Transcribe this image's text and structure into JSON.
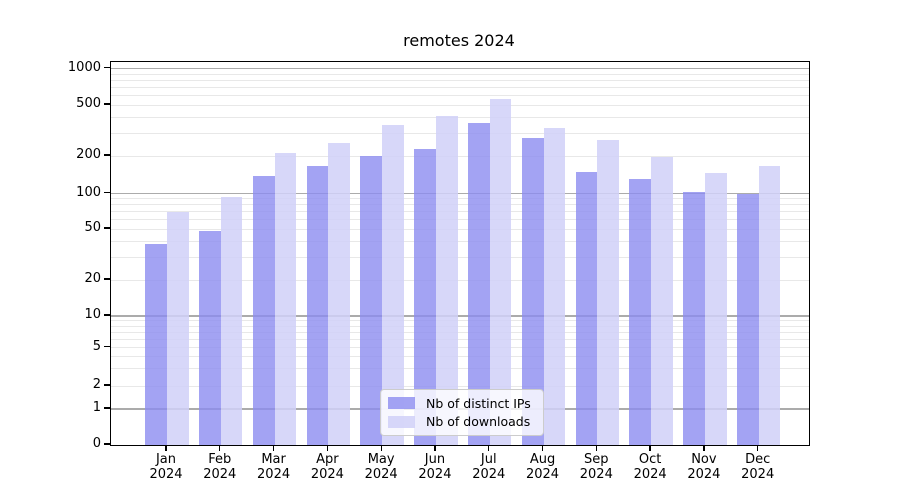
{
  "title": "remotes 2024",
  "chart_data": {
    "type": "bar",
    "title": "remotes 2024",
    "categories": [
      "Jan 2024",
      "Feb 2024",
      "Mar 2024",
      "Apr 2024",
      "May 2024",
      "Jun 2024",
      "Jul 2024",
      "Aug 2024",
      "Sep 2024",
      "Oct 2024",
      "Nov 2024",
      "Dec 2024"
    ],
    "series": [
      {
        "name": "Nb of distinct IPs",
        "color": "#a3a3f1",
        "fill": "rgba(140,140,240,0.8)",
        "values": [
          38,
          48,
          137,
          166,
          200,
          228,
          360,
          278,
          149,
          130,
          102,
          100
        ]
      },
      {
        "name": "Nb of downloads",
        "color": "#d7d7f9",
        "fill": "rgba(208,208,248,0.85)",
        "values": [
          70,
          94,
          210,
          254,
          349,
          410,
          560,
          331,
          266,
          195,
          147,
          166
        ]
      }
    ],
    "y_axis": {
      "scale": "symlog",
      "tick_labels": [
        "0",
        "1",
        "2",
        "5",
        "10",
        "20",
        "50",
        "100",
        "200",
        "500",
        "1000"
      ],
      "ticks": [
        0,
        1,
        2,
        5,
        10,
        20,
        50,
        100,
        200,
        500,
        1000
      ],
      "range": [
        0,
        1000
      ],
      "grid_major": [
        1,
        10,
        100,
        1000
      ],
      "grid_minor_mantissas": [
        2,
        3,
        4,
        5,
        6,
        7,
        8,
        9
      ]
    },
    "xlabel": "",
    "ylabel": "",
    "legend_position": "lower center",
    "grid": true
  },
  "colors": {
    "grid_major": "#ababab",
    "grid_minor": "#e8e8e8",
    "axis": "#000000",
    "legend_border": "#cccccc"
  }
}
